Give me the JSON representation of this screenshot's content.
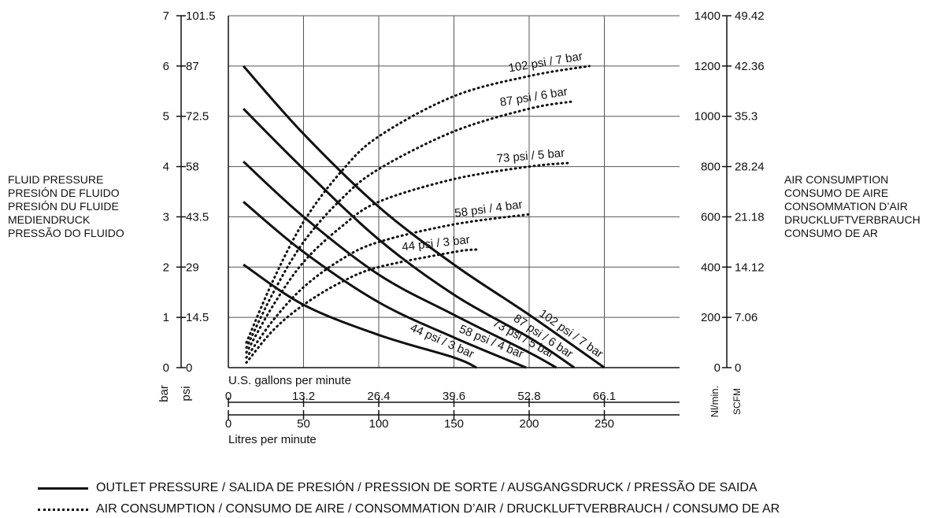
{
  "chart_data": {
    "type": "line",
    "left_axis": {
      "bar_ticks": [
        "0",
        "1",
        "2",
        "3",
        "4",
        "5",
        "6",
        "7"
      ],
      "psi_ticks": [
        "0",
        "14.5",
        "29",
        "43.5",
        "58",
        "72.5",
        "87",
        "101.5"
      ],
      "unit_bar": "bar",
      "unit_psi": "psi",
      "range": [
        0,
        7
      ],
      "title_lines": [
        "FLUID PRESSURE",
        "PRESIÓN DE FLUIDO",
        "PRESIÓN DU FLUIDE",
        "MEDIENDRUCK",
        "PRESSÃO DO FLUIDO"
      ]
    },
    "right_axis": {
      "nl_ticks": [
        "0",
        "200",
        "400",
        "600",
        "800",
        "1000",
        "1200",
        "1400"
      ],
      "scfm_ticks": [
        "0",
        "7.06",
        "14.12",
        "21.18",
        "28.24",
        "35.3",
        "42.36",
        "49.42"
      ],
      "unit_nl": "Nl/min.",
      "unit_scfm": "SCFM",
      "range": [
        0,
        1400
      ],
      "title_lines": [
        "AIR CONSUMPTION",
        "CONSUMO DE AIRE",
        "CONSOMMATION D’AIR",
        "DRUCKLUFTVERBRAUCH",
        "CONSUMO DE AR"
      ]
    },
    "x_gallons": {
      "label": "U.S. gallons per minute",
      "ticks": [
        "0",
        "13.2",
        "26.4",
        "39.6",
        "52.8",
        "66.1"
      ]
    },
    "x_litres": {
      "label": "Litres per minute",
      "ticks": [
        "0",
        "50",
        "100",
        "150",
        "200",
        "250"
      ],
      "range": [
        0,
        300
      ]
    },
    "grid": true,
    "outlet_series": [
      {
        "name": "102 psi / 7 bar",
        "x": [
          10,
          50,
          100,
          150,
          200,
          250
        ],
        "y": [
          6.0,
          4.65,
          3.2,
          2.05,
          1.05,
          0
        ]
      },
      {
        "name": "87 psi / 6 bar",
        "x": [
          10,
          50,
          100,
          150,
          200,
          230
        ],
        "y": [
          5.15,
          3.95,
          2.55,
          1.45,
          0.6,
          0
        ]
      },
      {
        "name": "73 psi / 5 bar",
        "x": [
          10,
          50,
          100,
          150,
          200,
          218
        ],
        "y": [
          4.1,
          3.0,
          1.85,
          1.05,
          0.3,
          0
        ]
      },
      {
        "name": "58 psi / 4 bar",
        "x": [
          10,
          50,
          100,
          150,
          198
        ],
        "y": [
          3.3,
          2.3,
          1.3,
          0.6,
          0
        ]
      },
      {
        "name": "44 psi / 3 bar",
        "x": [
          10,
          50,
          100,
          150,
          165
        ],
        "y": [
          2.05,
          1.25,
          0.65,
          0.2,
          0
        ]
      }
    ],
    "air_series": [
      {
        "name": "102 psi / 7 bar",
        "x": [
          12,
          30,
          50,
          75,
          100,
          150,
          200,
          240
        ],
        "y": [
          100,
          350,
          580,
          780,
          920,
          1080,
          1160,
          1200
        ]
      },
      {
        "name": "87 psi / 6 bar",
        "x": [
          12,
          30,
          50,
          75,
          100,
          150,
          200,
          230
        ],
        "y": [
          80,
          300,
          500,
          670,
          790,
          940,
          1030,
          1060
        ]
      },
      {
        "name": "73 psi / 5 bar",
        "x": [
          12,
          30,
          50,
          75,
          100,
          150,
          200,
          228
        ],
        "y": [
          60,
          250,
          420,
          560,
          660,
          750,
          800,
          815
        ]
      },
      {
        "name": "58 psi / 4 bar",
        "x": [
          12,
          30,
          50,
          75,
          100,
          150,
          200
        ],
        "y": [
          40,
          190,
          320,
          430,
          500,
          570,
          610
        ]
      },
      {
        "name": "44 psi / 3 bar",
        "x": [
          12,
          30,
          50,
          75,
          100,
          150,
          165
        ],
        "y": [
          20,
          150,
          250,
          340,
          400,
          460,
          470
        ]
      }
    ],
    "legend": {
      "outlet": "OUTLET PRESSURE / SALIDA DE PRESIÓN / PRESSION DE SORTE / AUSGANGSDRUCK / PRESSÃO DE SAIDA",
      "air": "AIR CONSUMPTION / CONSUMO DE AIRE / CONSOMMATION D’AIR / DRUCKLUFTVERBRAUCH / CONSUMO DE AR"
    },
    "line_color": "#111111"
  }
}
